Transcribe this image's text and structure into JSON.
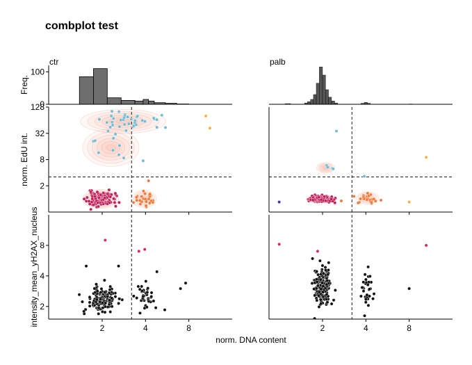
{
  "figure_title": "combplot test",
  "xlabel": "norm. DNA content",
  "colors": {
    "g1": "#c0205a",
    "s": "#72bcd5",
    "g2": "#ee7b3a",
    "polyploid": "#f5b041",
    "sub_g1": "#3b3b9e",
    "mitotic": "#e0245e",
    "black": "#111111",
    "kde": "#e8704a",
    "hist_ctr": "#6e6e6e",
    "hist_palb": "#555555"
  },
  "chart_data": [
    {
      "type": "bar",
      "panel": "histogram",
      "title": "ctr",
      "ylabel": "Freq.",
      "xscale": "log2",
      "xlim": [
        0.85,
        16
      ],
      "ylim": [
        0,
        120
      ],
      "yticks": [
        0,
        100
      ],
      "bins": [
        {
          "x0": 1.39,
          "x1": 1.74,
          "count": 85
        },
        {
          "x0": 1.74,
          "x1": 2.17,
          "count": 110
        },
        {
          "x0": 2.17,
          "x1": 2.71,
          "count": 20
        },
        {
          "x0": 2.71,
          "x1": 3.38,
          "count": 12
        },
        {
          "x0": 3.38,
          "x1": 3.85,
          "count": 10
        },
        {
          "x0": 3.85,
          "x1": 4.2,
          "count": 15
        },
        {
          "x0": 4.2,
          "x1": 4.6,
          "count": 10
        },
        {
          "x0": 4.6,
          "x1": 5.5,
          "count": 5
        },
        {
          "x0": 5.5,
          "x1": 6.6,
          "count": 3
        },
        {
          "x0": 6.6,
          "x1": 8.0,
          "count": 1
        }
      ]
    },
    {
      "type": "bar",
      "panel": "histogram",
      "title": "palb",
      "xscale": "log2",
      "xlim": [
        0.85,
        16
      ],
      "ylim": [
        0,
        120
      ],
      "bins": [
        {
          "x0": 1.1,
          "x1": 1.2,
          "count": 2
        },
        {
          "x0": 1.5,
          "x1": 1.57,
          "count": 4
        },
        {
          "x0": 1.57,
          "x1": 1.65,
          "count": 8
        },
        {
          "x0": 1.65,
          "x1": 1.73,
          "count": 15
        },
        {
          "x0": 1.73,
          "x1": 1.81,
          "count": 30
        },
        {
          "x0": 1.81,
          "x1": 1.9,
          "count": 65
        },
        {
          "x0": 1.9,
          "x1": 2.0,
          "count": 115
        },
        {
          "x0": 2.0,
          "x1": 2.1,
          "count": 90
        },
        {
          "x0": 2.1,
          "x1": 2.2,
          "count": 45
        },
        {
          "x0": 2.2,
          "x1": 2.31,
          "count": 22
        },
        {
          "x0": 2.31,
          "x1": 2.43,
          "count": 10
        },
        {
          "x0": 2.43,
          "x1": 2.55,
          "count": 4
        },
        {
          "x0": 3.7,
          "x1": 3.9,
          "count": 3
        },
        {
          "x0": 3.9,
          "x1": 4.1,
          "count": 6
        },
        {
          "x0": 4.1,
          "x1": 4.3,
          "count": 3
        },
        {
          "x0": 8.0,
          "x1": 8.4,
          "count": 1
        }
      ]
    },
    {
      "type": "scatter",
      "panel": "edu",
      "ylabel": "norm. EdU int.",
      "xscale": "log2",
      "yscale": "log2",
      "xlim": [
        0.85,
        16
      ],
      "ylim": [
        0.5,
        128
      ],
      "yticks": [
        2,
        8,
        32,
        128
      ],
      "xticks_partial": [
        2,
        4,
        8
      ],
      "thresholds": {
        "x": 3.2,
        "y": 3.2
      },
      "clusters": [
        {
          "label": "G1",
          "color": "g1",
          "cx": 1.95,
          "cy": 1.0,
          "sx": 0.16,
          "sy": 0.28,
          "n": 110,
          "seed": 11
        },
        {
          "label": "G2",
          "color": "g2",
          "cx": 3.9,
          "cy": 1.0,
          "sx": 0.11,
          "sy": 0.25,
          "n": 30,
          "seed": 12
        },
        {
          "label": "S_top",
          "color": "s",
          "cx": 2.8,
          "cy": 60,
          "sx": 0.38,
          "sy": 0.35,
          "n": 38,
          "seed": 13
        },
        {
          "label": "S_mid",
          "color": "s",
          "cx": 2.3,
          "cy": 15,
          "sx": 0.25,
          "sy": 0.55,
          "n": 10,
          "seed": 14
        }
      ],
      "points": [
        {
          "x": 10.5,
          "y": 80,
          "color": "polyploid"
        },
        {
          "x": 11.2,
          "y": 42,
          "color": "polyploid"
        },
        {
          "x": 4.8,
          "y": 44,
          "color": "s"
        },
        {
          "x": 3.85,
          "y": 7.5,
          "color": "s"
        },
        {
          "x": 4.2,
          "y": 2.6,
          "color": "g2"
        }
      ]
    },
    {
      "type": "scatter",
      "panel": "edu",
      "xscale": "log2",
      "yscale": "log2",
      "xlim": [
        0.85,
        16
      ],
      "ylim": [
        0.5,
        128
      ],
      "xticks_partial": [
        2,
        4,
        8
      ],
      "thresholds": {
        "x": 3.2,
        "y": 3.2
      },
      "clusters": [
        {
          "label": "G1",
          "color": "g1",
          "cx": 1.95,
          "cy": 1.0,
          "sx": 0.13,
          "sy": 0.12,
          "n": 160,
          "seed": 21
        },
        {
          "label": "G2",
          "color": "g2",
          "cx": 4.1,
          "cy": 1.05,
          "sx": 0.1,
          "sy": 0.18,
          "n": 26,
          "seed": 22
        },
        {
          "label": "S",
          "color": "s",
          "cx": 2.1,
          "cy": 5.2,
          "sx": 0.08,
          "sy": 0.15,
          "n": 4,
          "seed": 23
        }
      ],
      "points": [
        {
          "x": 1.0,
          "y": 0.85,
          "color": "sub_g1"
        },
        {
          "x": 2.5,
          "y": 36,
          "color": "s"
        },
        {
          "x": 3.9,
          "y": 3.3,
          "color": "s"
        },
        {
          "x": 8.0,
          "y": 0.85,
          "color": "polyploid"
        },
        {
          "x": 10.5,
          "y": 9.0,
          "color": "polyploid"
        },
        {
          "x": 2.7,
          "y": 0.9,
          "color": "g2"
        }
      ]
    },
    {
      "type": "scatter",
      "panel": "h2ax",
      "ylabel": "intensity_mean_yH2AX_nucleus",
      "xscale": "log2",
      "yscale": "log2",
      "xlim": [
        0.85,
        16
      ],
      "ylim": [
        1.5,
        16
      ],
      "yticks": [
        2,
        4,
        8
      ],
      "xticks": [
        2,
        4,
        8
      ],
      "thresholds": {
        "x": 3.2
      },
      "clusters": [
        {
          "label": "G1",
          "color": "black",
          "cx": 2.0,
          "cy": 2.35,
          "sx": 0.16,
          "sy": 0.2,
          "n": 150,
          "seed": 31
        },
        {
          "label": "G2",
          "color": "black",
          "cx": 4.0,
          "cy": 2.55,
          "sx": 0.12,
          "sy": 0.2,
          "n": 38,
          "seed": 32
        }
      ],
      "points": [
        {
          "x": 2.1,
          "y": 9.0,
          "color": "mitotic"
        },
        {
          "x": 3.6,
          "y": 7.0,
          "color": "mitotic"
        },
        {
          "x": 3.95,
          "y": 7.3,
          "color": "mitotic"
        },
        {
          "x": 7.0,
          "y": 3.0,
          "color": "black"
        },
        {
          "x": 7.6,
          "y": 3.4,
          "color": "black"
        },
        {
          "x": 4.8,
          "y": 4.4,
          "color": "black"
        },
        {
          "x": 1.55,
          "y": 5.0,
          "color": "black"
        },
        {
          "x": 2.6,
          "y": 5.0,
          "color": "black"
        }
      ]
    },
    {
      "type": "scatter",
      "panel": "h2ax",
      "xscale": "log2",
      "yscale": "log2",
      "xlim": [
        0.85,
        16
      ],
      "ylim": [
        1.5,
        16
      ],
      "xticks": [
        2,
        4,
        8
      ],
      "thresholds": {
        "x": 3.2
      },
      "clusters": [
        {
          "label": "G1",
          "color": "black",
          "cx": 2.0,
          "cy": 3.2,
          "sx": 0.09,
          "sy": 0.32,
          "n": 190,
          "seed": 41
        },
        {
          "label": "G2",
          "color": "black",
          "cx": 4.05,
          "cy": 3.2,
          "sx": 0.07,
          "sy": 0.3,
          "n": 32,
          "seed": 42
        }
      ],
      "points": [
        {
          "x": 1.0,
          "y": 8.2,
          "color": "mitotic"
        },
        {
          "x": 1.85,
          "y": 7.0,
          "color": "mitotic"
        },
        {
          "x": 10.5,
          "y": 8.0,
          "color": "mitotic"
        },
        {
          "x": 8.0,
          "y": 3.0,
          "color": "black"
        }
      ]
    }
  ]
}
